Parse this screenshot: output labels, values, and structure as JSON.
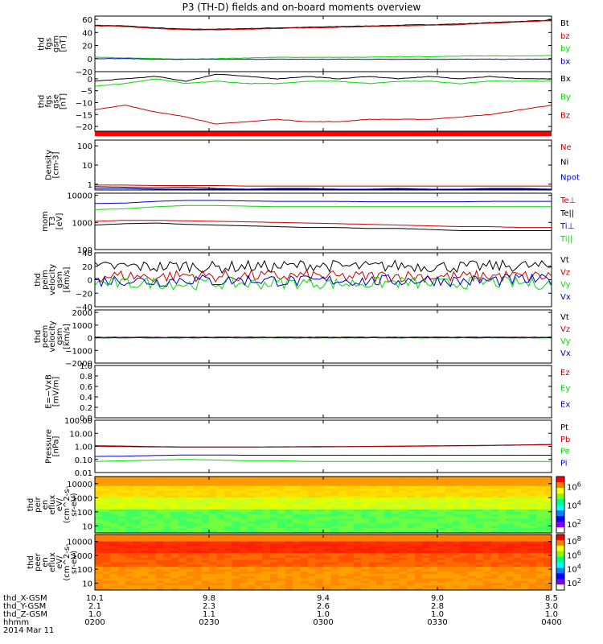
{
  "title": "P3 (TH-D) fields and on-board moments overview",
  "colors": {
    "black": "#000000",
    "red": "#cc0000",
    "green": "#00dd00",
    "blue": "#0000cc"
  },
  "chart_data": [
    {
      "type": "line",
      "ylabel": [
        "thd",
        "fgs",
        "gsm",
        "[nT]"
      ],
      "ylim": [
        -20,
        65
      ],
      "yticks": [
        "60",
        "40",
        "20",
        "0",
        "−20"
      ],
      "legend": [
        {
          "label": "Bt",
          "color": "#000000"
        },
        {
          "label": "bz",
          "color": "#cc0000"
        },
        {
          "label": "by",
          "color": "#00dd00"
        },
        {
          "label": "bx",
          "color": "#0000cc"
        }
      ],
      "series": [
        {
          "name": "Bt",
          "values": [
            51,
            50,
            47,
            45,
            45,
            46,
            47,
            48,
            49,
            50,
            51,
            52,
            53,
            55,
            57,
            59
          ]
        },
        {
          "name": "bz",
          "values": [
            50,
            49,
            46,
            44,
            44,
            45,
            46,
            47,
            48,
            49,
            50,
            51,
            52,
            54,
            56,
            58
          ]
        },
        {
          "name": "by",
          "values": [
            2,
            1,
            0,
            -1,
            0,
            1,
            2,
            2,
            2,
            2,
            3,
            3,
            4,
            4,
            4,
            5
          ]
        },
        {
          "name": "bx",
          "values": [
            0,
            0,
            -1,
            -1,
            -1,
            -1,
            -1,
            -1,
            -1,
            -1,
            -1,
            -1,
            -1,
            -1,
            -1,
            -1
          ]
        }
      ]
    },
    {
      "type": "line",
      "ylabel": [
        "thd",
        "fgs",
        "gse",
        "[nT]"
      ],
      "ylim": [
        -22,
        3
      ],
      "yticks": [
        "0",
        "−5",
        "−10",
        "−15",
        "−20"
      ],
      "legend": [
        {
          "label": "Bx",
          "color": "#000000"
        },
        {
          "label": "By",
          "color": "#00dd00"
        },
        {
          "label": "Bz",
          "color": "#cc0000"
        }
      ],
      "series": [
        {
          "name": "Bx",
          "values": [
            -1,
            0,
            1,
            -1,
            2,
            1,
            0,
            1,
            0,
            1,
            0,
            1,
            0,
            1,
            0,
            0
          ]
        },
        {
          "name": "By",
          "values": [
            -3,
            -2,
            0,
            -2,
            -1,
            -2,
            -2,
            -1,
            -1,
            -2,
            -1,
            -1,
            -2,
            -1,
            -1,
            -1
          ]
        },
        {
          "name": "Bz",
          "values": [
            -13,
            -11,
            -14,
            -16,
            -19,
            -18,
            -17,
            -18,
            -18,
            -17,
            -17,
            -17,
            -16,
            -15,
            -13,
            -11
          ]
        }
      ]
    },
    {
      "type": "line",
      "ylabel": [
        "Density",
        "[cm-3]"
      ],
      "ylim_log": [
        0.5,
        200
      ],
      "yticks": [
        "100",
        "10",
        "1"
      ],
      "legend": [
        {
          "label": "Ne",
          "color": "#cc0000"
        },
        {
          "label": "Ni",
          "color": "#000000"
        },
        {
          "label": "Npot",
          "color": "#0000cc"
        }
      ],
      "series": [
        {
          "name": "Ne",
          "values": [
            0.9,
            0.9,
            0.85,
            0.85,
            0.85,
            0.8,
            0.8,
            0.8,
            0.8,
            0.8,
            0.8,
            0.8,
            0.8,
            0.8,
            0.8,
            0.8
          ]
        },
        {
          "name": "Ni",
          "values": [
            0.75,
            0.7,
            0.65,
            0.7,
            0.6,
            0.55,
            0.6,
            0.6,
            0.55,
            0.55,
            0.6,
            0.55,
            0.55,
            0.6,
            0.6,
            0.55
          ]
        },
        {
          "name": "Npot",
          "values": [
            0.6,
            0.6,
            0.55,
            0.55,
            0.55,
            0.55,
            0.55,
            0.55,
            0.55,
            0.55,
            0.55,
            0.55,
            0.55,
            0.55,
            0.55,
            0.55
          ]
        }
      ]
    },
    {
      "type": "line",
      "ylabel": [
        "mom",
        "T3",
        "[eV]"
      ],
      "ylim_log": [
        100,
        12000
      ],
      "yticks": [
        "10000",
        "1000",
        "100"
      ],
      "legend": [
        {
          "label": "Te⊥",
          "color": "#cc0000"
        },
        {
          "label": "Te||",
          "color": "#000000"
        },
        {
          "label": "Ti⊥",
          "color": "#0000cc"
        },
        {
          "label": "Ti||",
          "color": "#00dd00"
        }
      ],
      "series": [
        {
          "name": "Te⊥",
          "values": [
            1100,
            1200,
            1200,
            1150,
            1100,
            1050,
            1000,
            950,
            900,
            850,
            800,
            750,
            700,
            700,
            650,
            650
          ]
        },
        {
          "name": "Te||",
          "values": [
            800,
            900,
            950,
            850,
            800,
            750,
            700,
            650,
            650,
            600,
            600,
            550,
            500,
            500,
            500,
            500
          ]
        },
        {
          "name": "Ti⊥",
          "values": [
            5000,
            5200,
            6000,
            6500,
            6500,
            6200,
            6000,
            6000,
            6000,
            5800,
            5800,
            5800,
            5800,
            6000,
            6000,
            6000
          ]
        },
        {
          "name": "Ti||",
          "values": [
            3000,
            3200,
            3800,
            4200,
            4200,
            4000,
            3800,
            3800,
            3800,
            3800,
            3800,
            3800,
            3800,
            3800,
            3800,
            3800
          ]
        }
      ]
    },
    {
      "type": "line",
      "ylabel": [
        "thd",
        "peim",
        "velocity",
        "gsm",
        "[km/s]"
      ],
      "ylim": [
        -40,
        40
      ],
      "yticks": [
        "40",
        "20",
        "0",
        "−20",
        "−40"
      ],
      "legend": [
        {
          "label": "Vt",
          "color": "#000000"
        },
        {
          "label": "Vz",
          "color": "#cc0000"
        },
        {
          "label": "Vy",
          "color": "#00dd00"
        },
        {
          "label": "Vx",
          "color": "#0000cc"
        }
      ],
      "series": [
        {
          "name": "Vt",
          "values": [
            18,
            20,
            19,
            21,
            18,
            20,
            19,
            22,
            20,
            19,
            21,
            20,
            19,
            20,
            21,
            19
          ]
        },
        {
          "name": "Vz",
          "values": [
            5,
            6,
            4,
            7,
            5,
            6,
            5,
            6,
            4,
            5,
            6,
            5,
            4,
            6,
            5,
            5
          ]
        },
        {
          "name": "Vy",
          "values": [
            -5,
            -6,
            -4,
            -7,
            -5,
            -6,
            -5,
            -4,
            -6,
            -5,
            -4,
            -6,
            -5,
            -4,
            -5,
            -6
          ]
        },
        {
          "name": "Vx",
          "values": [
            -2,
            0,
            -3,
            1,
            -2,
            0,
            -1,
            -3,
            0,
            -2,
            -1,
            0,
            -2,
            -1,
            0,
            -1
          ]
        }
      ]
    },
    {
      "type": "line",
      "ylabel": [
        "thd",
        "peem",
        "velocity",
        "gsm",
        "[km/s]"
      ],
      "ylim": [
        -2000,
        2200
      ],
      "yticks": [
        "2000",
        "1000",
        "0",
        "−1000",
        "−2000"
      ],
      "legend": [
        {
          "label": "Vt",
          "color": "#000000"
        },
        {
          "label": "Vz",
          "color": "#cc0000"
        },
        {
          "label": "Vy",
          "color": "#00dd00"
        },
        {
          "label": "Vx",
          "color": "#0000cc"
        }
      ],
      "series": [
        {
          "name": "Vt",
          "values": [
            40,
            45,
            40,
            42,
            40,
            44,
            40,
            42,
            41,
            40,
            43,
            40,
            42,
            41,
            40,
            42
          ]
        },
        {
          "name": "Vz",
          "values": [
            10,
            12,
            8,
            10,
            11,
            9,
            10,
            12,
            10,
            9,
            11,
            10,
            10,
            9,
            11,
            10
          ]
        },
        {
          "name": "Vy",
          "values": [
            -10,
            -12,
            -8,
            -10,
            -11,
            -9,
            -10,
            -12,
            -10,
            -9,
            -11,
            -10,
            -10,
            -9,
            -11,
            -10
          ]
        },
        {
          "name": "Vx",
          "values": [
            0,
            2,
            -2,
            0,
            1,
            -1,
            0,
            2,
            0,
            -1,
            1,
            0,
            0,
            -1,
            1,
            0
          ]
        }
      ]
    },
    {
      "type": "line",
      "ylabel": [
        "E=−VxB",
        "[mV/m]"
      ],
      "ylim": [
        0,
        1
      ],
      "yticks": [
        "1.0",
        "0.8",
        "0.6",
        "0.4",
        "0.2",
        "0.0"
      ],
      "legend": [
        {
          "label": "Ez",
          "color": "#cc0000"
        },
        {
          "label": "Ey",
          "color": "#00dd00"
        },
        {
          "label": "Ex",
          "color": "#0000cc"
        }
      ],
      "series": []
    },
    {
      "type": "line",
      "ylabel": [
        "Pressure",
        "[nPa]"
      ],
      "ylim_log": [
        0.01,
        100
      ],
      "yticks": [
        "100.00",
        "10.00",
        "1.00",
        "0.10",
        "0.01"
      ],
      "legend": [
        {
          "label": "Pt",
          "color": "#000000"
        },
        {
          "label": "Pb",
          "color": "#cc0000"
        },
        {
          "label": "Pe",
          "color": "#00dd00"
        },
        {
          "label": "Pi",
          "color": "#0000cc"
        }
      ],
      "series": [
        {
          "name": "Pt",
          "values": [
            1.1,
            1.05,
            0.95,
            0.9,
            0.9,
            0.9,
            0.92,
            0.95,
            0.97,
            1.0,
            1.05,
            1.1,
            1.15,
            1.2,
            1.3,
            1.4
          ]
        },
        {
          "name": "Pb",
          "values": [
            1.0,
            0.95,
            0.9,
            0.85,
            0.85,
            0.85,
            0.88,
            0.9,
            0.93,
            0.97,
            1.0,
            1.05,
            1.1,
            1.15,
            1.25,
            1.35
          ]
        },
        {
          "name": "Pi",
          "values": [
            0.17,
            0.18,
            0.2,
            0.22,
            0.22,
            0.21,
            0.21,
            0.21,
            0.21,
            0.21,
            0.21,
            0.21,
            0.21,
            0.21,
            0.21,
            0.21
          ]
        },
        {
          "name": "Pe",
          "values": [
            0.07,
            0.08,
            0.09,
            0.1,
            0.09,
            0.08,
            0.08,
            0.07,
            0.07,
            0.07,
            0.07,
            0.07,
            0.07,
            0.07,
            0.07,
            0.07
          ]
        }
      ]
    },
    {
      "type": "heatmap",
      "ylabel": [
        "thd",
        "peir",
        "en",
        "eflux",
        "eV/",
        "(cm^2-s-",
        "sr-eV)"
      ],
      "ylim_log": [
        5,
        25000
      ],
      "yticks": [
        "10000",
        "1000",
        "100",
        "10"
      ],
      "colorbar": {
        "ticks": [
          "10^6",
          "10^4",
          "10^2"
        ]
      }
    },
    {
      "type": "heatmap",
      "ylabel": [
        "thd",
        "peer",
        "en",
        "eflux",
        "eV/",
        "(cm^2-s-",
        "sr-eV)"
      ],
      "ylim_log": [
        5,
        25000
      ],
      "yticks": [
        "10000",
        "1000",
        "100",
        "10"
      ],
      "colorbar": {
        "ticks": [
          "10^8",
          "10^6",
          "10^4",
          "10^2"
        ]
      }
    }
  ],
  "footer": {
    "rows": [
      {
        "label": "thd_X-GSM",
        "values": [
          "10.1",
          "9.8",
          "9.4",
          "9.0",
          "8.5"
        ]
      },
      {
        "label": "thd_Y-GSM",
        "values": [
          "2.1",
          "2.3",
          "2.6",
          "2.8",
          "3.0"
        ]
      },
      {
        "label": "thd_Z-GSM",
        "values": [
          "1.0",
          "1.1",
          "1.0",
          "1.0",
          "1.0"
        ]
      },
      {
        "label": "hhmm",
        "values": [
          "0200",
          "0230",
          "0300",
          "0330",
          "0400"
        ]
      }
    ],
    "date": "2014 Mar 11"
  }
}
